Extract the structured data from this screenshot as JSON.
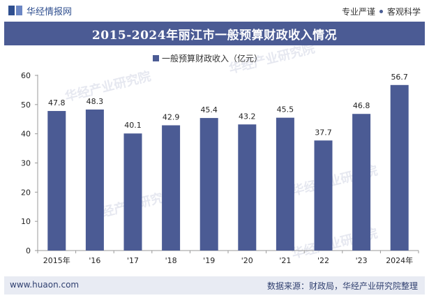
{
  "header": {
    "brand_name": "华经情报网",
    "tagline_left": "专业严谨",
    "tagline_right": "客观科学"
  },
  "chart_data": {
    "type": "bar",
    "title": "2015-2024年丽江市一般预算财政收入情况",
    "legend": "一般预算财政收入（亿元）",
    "legend_position": "top-center",
    "categories": [
      "2015年",
      "'16",
      "'17",
      "'18",
      "'19",
      "'20",
      "'21",
      "'22",
      "'23",
      "2024年"
    ],
    "series": [
      {
        "name": "一般预算财政收入（亿元）",
        "values": [
          47.8,
          48.3,
          40.1,
          42.9,
          45.4,
          43.2,
          45.5,
          37.7,
          46.8,
          56.7
        ]
      }
    ],
    "ylim": [
      0,
      60
    ],
    "yticks": [
      0,
      10,
      20,
      30,
      40,
      50,
      60
    ],
    "grid": false,
    "color": "#4b5b94"
  },
  "watermarks": [
    "华经产业研究院",
    "www.huaon.com"
  ],
  "footer": {
    "website": "www.huaon.com",
    "source": "数据来源：财政局，华经产业研究院整理"
  }
}
